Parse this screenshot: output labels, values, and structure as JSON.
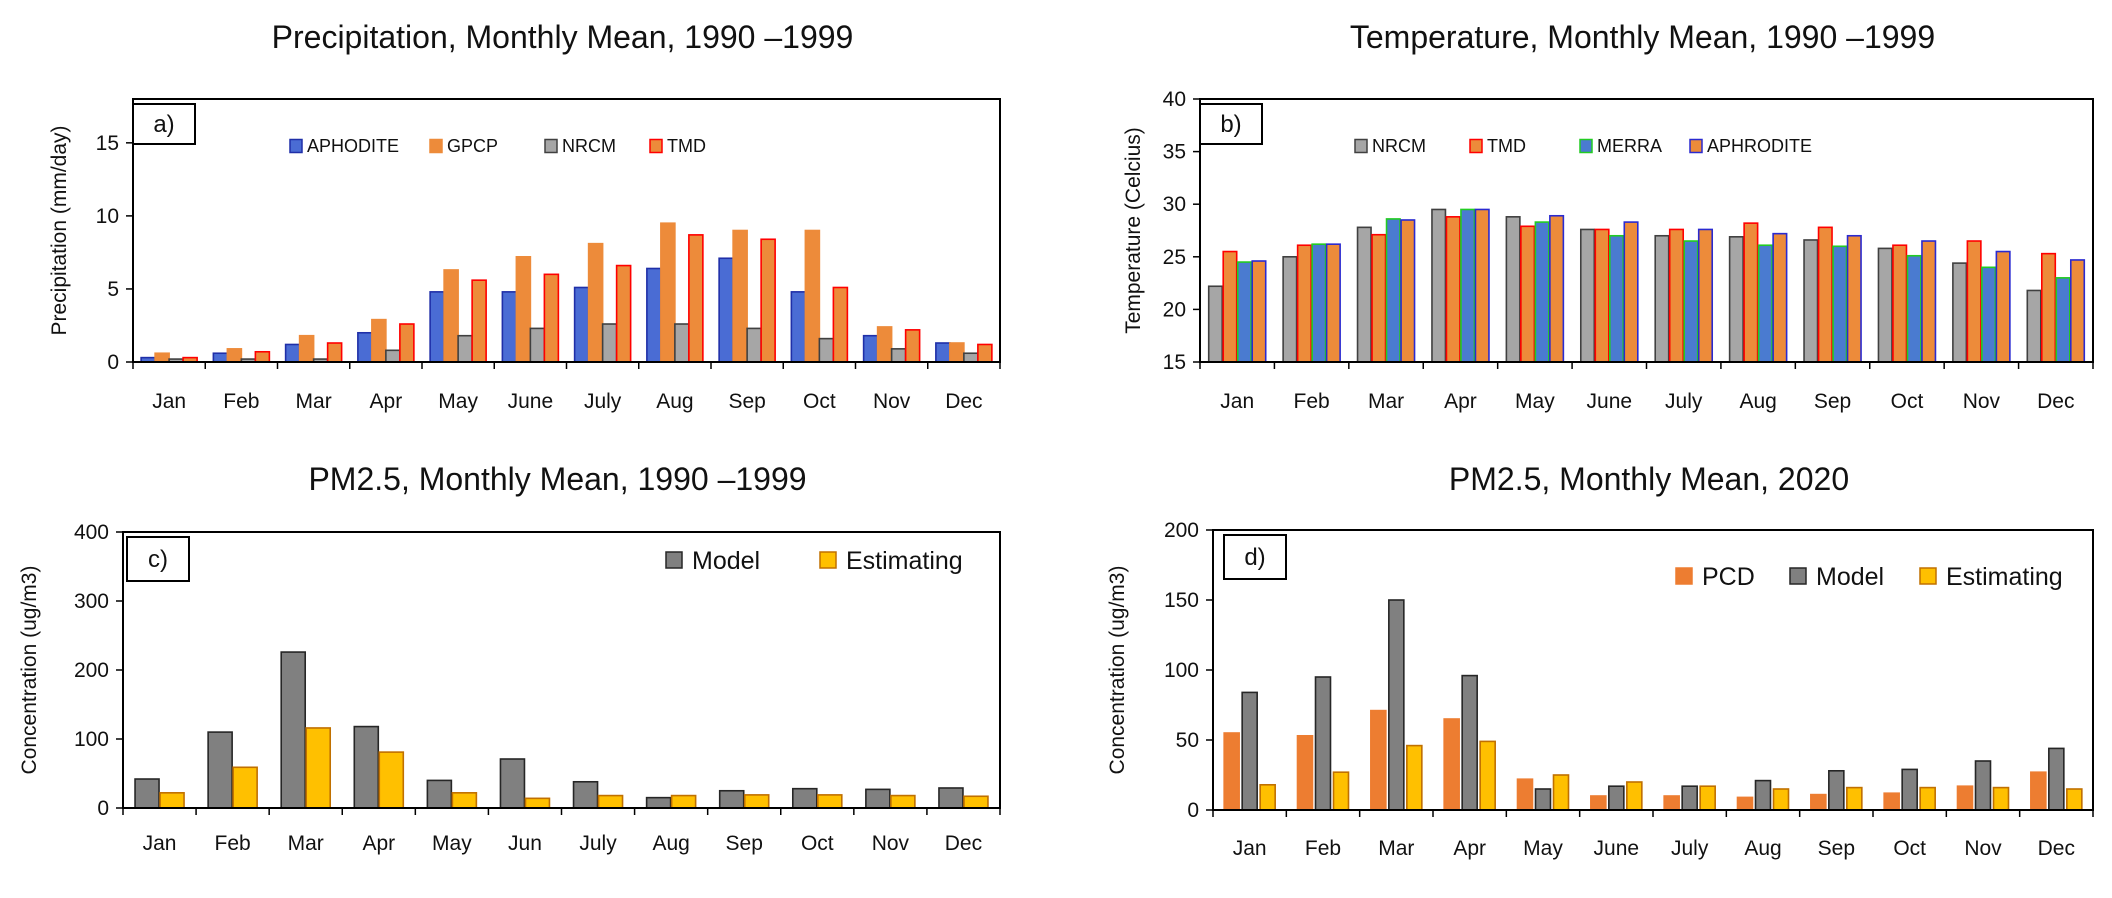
{
  "chart_data": [
    {
      "type": "bar",
      "panel": "a)",
      "title": "Precipitation, Monthly Mean, 1990 –1999",
      "xlabel": "",
      "ylabel": "Precipitation (mm/day)",
      "ylim": [
        0,
        18
      ],
      "yticks": [
        0,
        5,
        10,
        15
      ],
      "legend_position": "top",
      "categories": [
        "Jan",
        "Feb",
        "Mar",
        "Apr",
        "May",
        "June",
        "July",
        "Aug",
        "Sep",
        "Oct",
        "Nov",
        "Dec"
      ],
      "series": [
        {
          "name": "APHODITE",
          "color": "#4a6cd4",
          "edge": "#1f2fa8",
          "values": [
            0.3,
            0.6,
            1.2,
            2.0,
            4.8,
            4.8,
            5.1,
            6.4,
            7.1,
            4.8,
            1.8,
            1.3
          ]
        },
        {
          "name": "GPCP",
          "color": "#ed8b3a",
          "edge": "#ed8b3a",
          "values": [
            0.6,
            0.9,
            1.8,
            2.9,
            6.3,
            7.2,
            8.1,
            9.5,
            9.0,
            9.0,
            2.4,
            1.3
          ]
        },
        {
          "name": "NRCM",
          "color": "#a6a6a6",
          "edge": "#404040",
          "values": [
            0.2,
            0.2,
            0.2,
            0.8,
            1.8,
            2.3,
            2.6,
            2.6,
            2.3,
            1.6,
            0.9,
            0.6
          ]
        },
        {
          "name": "TMD",
          "color": "#ed8b3a",
          "edge": "#ff0000",
          "values": [
            0.3,
            0.7,
            1.3,
            2.6,
            5.6,
            6.0,
            6.6,
            8.7,
            8.4,
            5.1,
            2.2,
            1.2
          ]
        }
      ]
    },
    {
      "type": "bar",
      "panel": "b)",
      "title": "Temperature, Monthly Mean, 1990 –1999",
      "xlabel": "",
      "ylabel": "Temperature (Celcius)",
      "ylim": [
        15,
        40
      ],
      "yticks": [
        15,
        20,
        25,
        30,
        35,
        40
      ],
      "legend_position": "top",
      "categories": [
        "Jan",
        "Feb",
        "Mar",
        "Apr",
        "May",
        "June",
        "July",
        "Aug",
        "Sep",
        "Oct",
        "Nov",
        "Dec"
      ],
      "series": [
        {
          "name": "NRCM",
          "color": "#a6a6a6",
          "edge": "#404040",
          "values": [
            22.2,
            25.0,
            27.8,
            29.5,
            28.8,
            27.6,
            27.0,
            26.9,
            26.6,
            25.8,
            24.4,
            21.8
          ]
        },
        {
          "name": "TMD",
          "color": "#ed8b3a",
          "edge": "#ff0000",
          "values": [
            25.5,
            26.1,
            27.1,
            28.8,
            27.9,
            27.6,
            27.6,
            28.2,
            27.8,
            26.1,
            26.5,
            25.3
          ]
        },
        {
          "name": "MERRA",
          "color": "#4a7bd0",
          "edge": "#22cc22",
          "values": [
            24.5,
            26.2,
            28.6,
            29.5,
            28.3,
            27.0,
            26.5,
            26.1,
            26.0,
            25.1,
            24.0,
            23.0
          ]
        },
        {
          "name": "APHRODITE",
          "color": "#ed8b3a",
          "edge": "#2a2ad0",
          "values": [
            24.6,
            26.2,
            28.5,
            29.5,
            28.9,
            28.3,
            27.6,
            27.2,
            27.0,
            26.5,
            25.5,
            24.7
          ]
        }
      ]
    },
    {
      "type": "bar",
      "panel": "c)",
      "title": "PM2.5, Monthly Mean, 1990 –1999",
      "xlabel": "",
      "ylabel": "Concentration (ug/m3)",
      "ylim": [
        0,
        400
      ],
      "yticks": [
        0,
        100,
        200,
        300,
        400
      ],
      "legend_position": "top-right",
      "categories": [
        "Jan",
        "Feb",
        "Mar",
        "Apr",
        "May",
        "Jun",
        "July",
        "Aug",
        "Sep",
        "Oct",
        "Nov",
        "Dec"
      ],
      "series": [
        {
          "name": "Model",
          "color": "#808080",
          "edge": "#262626",
          "values": [
            42,
            110,
            226,
            118,
            40,
            71,
            38,
            15,
            25,
            28,
            27,
            29
          ]
        },
        {
          "name": "Estimating",
          "color": "#ffc000",
          "edge": "#c07000",
          "values": [
            22,
            59,
            116,
            81,
            22,
            14,
            18,
            18,
            19,
            19,
            18,
            17
          ]
        }
      ]
    },
    {
      "type": "bar",
      "panel": "d)",
      "title": "PM2.5, Monthly Mean, 2020",
      "xlabel": "",
      "ylabel": "Concentration (ug/m3)",
      "ylim": [
        0,
        200
      ],
      "yticks": [
        0,
        50,
        100,
        150,
        200
      ],
      "legend_position": "top-right",
      "categories": [
        "Jan",
        "Feb",
        "Mar",
        "Apr",
        "May",
        "June",
        "July",
        "Aug",
        "Sep",
        "Oct",
        "Nov",
        "Dec"
      ],
      "series": [
        {
          "name": "PCD",
          "color": "#ed7d31",
          "edge": "#ed7d31",
          "values": [
            55,
            53,
            71,
            65,
            22,
            10,
            10,
            9,
            11,
            12,
            17,
            27
          ]
        },
        {
          "name": "Model",
          "color": "#808080",
          "edge": "#262626",
          "values": [
            84,
            95,
            150,
            96,
            15,
            17,
            17,
            21,
            28,
            29,
            35,
            44
          ]
        },
        {
          "name": "Estimating",
          "color": "#ffc000",
          "edge": "#c07000",
          "values": [
            18,
            27,
            46,
            49,
            25,
            20,
            17,
            15,
            16,
            16,
            16,
            15
          ]
        }
      ]
    }
  ]
}
